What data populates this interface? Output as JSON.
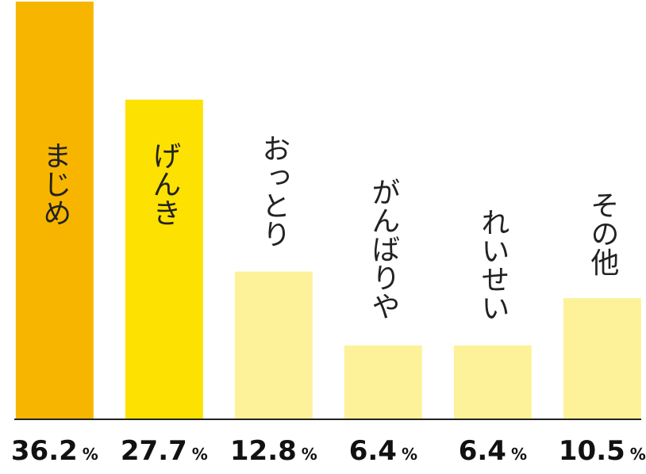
{
  "chart_data": {
    "type": "bar",
    "categories": [
      "まじめ",
      "げんき",
      "おっとり",
      "がんばりや",
      "れいせい",
      "その他"
    ],
    "values": [
      36.2,
      27.7,
      12.8,
      6.4,
      6.4,
      10.5
    ],
    "value_labels": [
      "36.2%",
      "27.7%",
      "12.8%",
      "6.4%",
      "6.4%",
      "10.5%"
    ],
    "colors": [
      "#f7b500",
      "#fde100",
      "#fdf29a",
      "#fdf29a",
      "#fdf29a",
      "#fdf29a"
    ]
  }
}
